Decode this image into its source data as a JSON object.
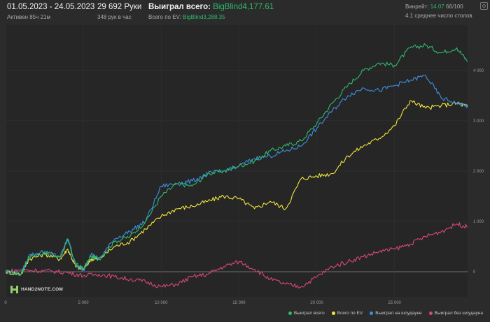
{
  "header": {
    "date_range": "01.05.2023 - 24.05.2023",
    "active_time": "Активен 85ч 21м",
    "hands_count": "29 692 Руки",
    "hands_per_hour": "348 рук в час",
    "won_total_label": "Выиграл всего:",
    "won_total_value": "BigBlind4,177.61",
    "ev_label": "Всего по EV:",
    "ev_value": "BigBlind3,288.35",
    "winrate_label": "Винрейт:",
    "winrate_value": "14.07",
    "winrate_suffix": "бб/100",
    "avg_tables": "4.1 среднее число столов"
  },
  "logo": {
    "text": "HAND2NOTE.COM"
  },
  "colors": {
    "won_total": "#2fb86c",
    "ev": "#f2e63a",
    "showdown": "#3c8fe0",
    "non_showdown": "#d8467a",
    "background": "#2b2b2b"
  },
  "icons": {
    "settings": "gear-icon"
  },
  "chart_data": {
    "type": "line",
    "xlim": [
      0,
      29692
    ],
    "ylim": [
      -500,
      4900
    ],
    "x_ticks": [
      0,
      5000,
      10000,
      15000,
      20000,
      25000
    ],
    "x_tick_labels": [
      "0",
      "5 000",
      "10 000",
      "15 000",
      "20 000",
      "25 000"
    ],
    "y_ticks": [
      0,
      1000,
      2000,
      3000,
      4000
    ],
    "y_tick_labels": [
      "0",
      "1 000",
      "2 000",
      "3 000",
      "4 000"
    ],
    "grid": true,
    "legend_position": "bottom-right",
    "series": [
      {
        "name": "Выиграл всего",
        "x": [
          0,
          1000,
          1500,
          2500,
          3500,
          4000,
          4500,
          5000,
          5500,
          6000,
          7000,
          8000,
          9000,
          10000,
          11000,
          12000,
          13000,
          14000,
          15000,
          16000,
          17000,
          18000,
          19000,
          20000,
          21000,
          22000,
          23000,
          24000,
          25000,
          26000,
          27000,
          28000,
          29000,
          29692
        ],
        "values": [
          0,
          -50,
          300,
          380,
          280,
          650,
          150,
          60,
          300,
          250,
          600,
          700,
          1000,
          1500,
          1750,
          1700,
          1950,
          2000,
          2100,
          2200,
          2400,
          2500,
          2600,
          2950,
          3350,
          3700,
          4000,
          4150,
          4100,
          4450,
          4500,
          4350,
          4450,
          4177
        ]
      },
      {
        "name": "Всего по EV",
        "x": [
          0,
          1000,
          1500,
          2500,
          3500,
          4000,
          4500,
          5000,
          5500,
          6000,
          7000,
          8000,
          9000,
          10000,
          11000,
          12000,
          13000,
          14000,
          15000,
          16000,
          17000,
          18000,
          19000,
          20000,
          21000,
          22000,
          23000,
          24000,
          25000,
          26000,
          27000,
          28000,
          29000,
          29692
        ],
        "values": [
          0,
          -50,
          250,
          350,
          250,
          450,
          100,
          50,
          250,
          250,
          500,
          600,
          850,
          1100,
          1250,
          1300,
          1400,
          1500,
          1450,
          1250,
          1400,
          1250,
          1850,
          1900,
          1950,
          2300,
          2500,
          2650,
          2900,
          3400,
          3250,
          3300,
          3350,
          3288
        ]
      },
      {
        "name": "Выиграл на шоудауне",
        "x": [
          0,
          1000,
          1500,
          2500,
          3500,
          4000,
          4500,
          5000,
          5500,
          6000,
          7000,
          8000,
          9000,
          10000,
          11000,
          12000,
          13000,
          14000,
          15000,
          16000,
          17000,
          18000,
          19000,
          20000,
          21000,
          22000,
          23000,
          24000,
          25000,
          26000,
          27000,
          28000,
          29000,
          29692
        ],
        "values": [
          0,
          -40,
          320,
          400,
          300,
          650,
          120,
          30,
          350,
          250,
          650,
          800,
          1000,
          1700,
          1750,
          1800,
          1950,
          2000,
          2100,
          2250,
          2300,
          2400,
          2500,
          2850,
          3200,
          3500,
          3650,
          3600,
          3700,
          3800,
          3900,
          3450,
          3350,
          3290
        ]
      },
      {
        "name": "Выиграл без шоудауна",
        "x": [
          0,
          1000,
          2000,
          3000,
          4000,
          5000,
          6000,
          7000,
          8000,
          9000,
          10000,
          11000,
          12000,
          13000,
          14000,
          15000,
          16000,
          17000,
          18000,
          19000,
          20000,
          21000,
          22000,
          23000,
          24000,
          25000,
          26000,
          27000,
          28000,
          29000,
          29692
        ],
        "values": [
          0,
          40,
          20,
          10,
          -20,
          -80,
          -50,
          -100,
          -150,
          -200,
          -300,
          -250,
          -100,
          -50,
          100,
          200,
          50,
          -150,
          -250,
          -300,
          -100,
          100,
          200,
          300,
          400,
          450,
          550,
          700,
          800,
          950,
          890
        ]
      }
    ]
  }
}
